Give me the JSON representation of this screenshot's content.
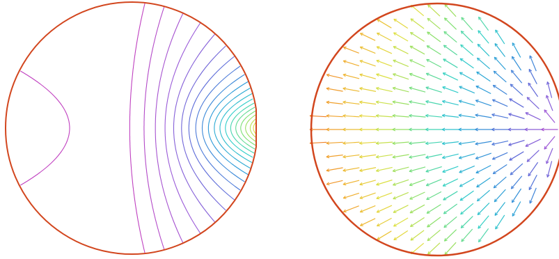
{
  "figure": {
    "panels": [
      {
        "id": "contour",
        "kind": "isolines",
        "count": 20
      },
      {
        "id": "vector",
        "kind": "arrow-field"
      }
    ],
    "colors": {
      "boundary": "#d2461e",
      "background": "#ffffff",
      "colormap": [
        "#c040c0",
        "#9a5ad8",
        "#5a6ad8",
        "#2a9ad8",
        "#30d0c8",
        "#80e070",
        "#e0e040",
        "#f0b030",
        "#f07020"
      ]
    }
  }
}
